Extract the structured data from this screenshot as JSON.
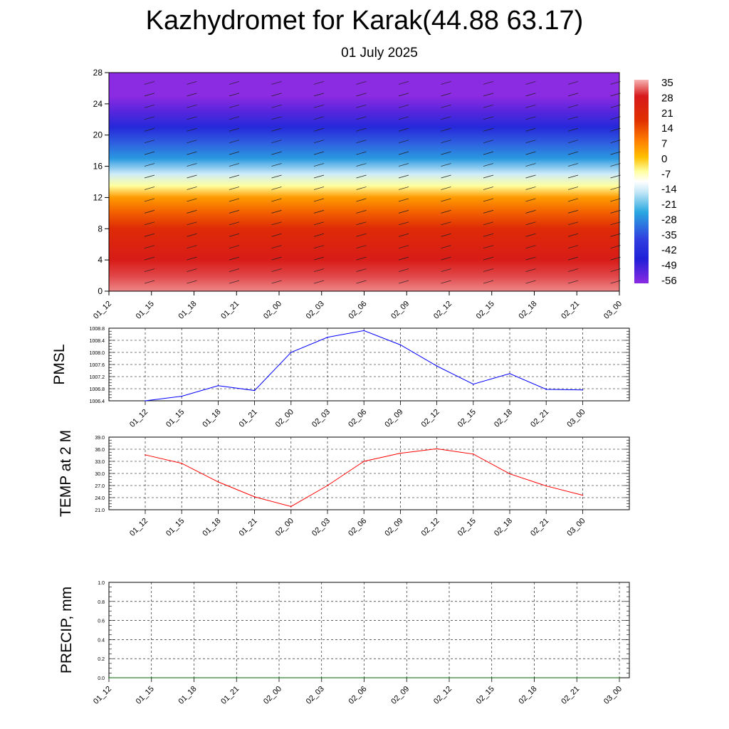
{
  "title": "Kazhydromet for Karak(44.88 63.17)",
  "subtitle": "01 July 2025",
  "chart_data": [
    {
      "type": "heatmap",
      "x_ticks": [
        "01_12",
        "01_15",
        "01_18",
        "01_21",
        "02_00",
        "02_03",
        "02_06",
        "02_09",
        "02_12",
        "02_15",
        "02_18",
        "02_21",
        "03_00"
      ],
      "y_ticks": [
        "0",
        "4",
        "8",
        "12",
        "16",
        "20",
        "24",
        "28"
      ],
      "ylim": [
        0,
        28
      ],
      "colorbar_labels": [
        "35",
        "28",
        "21",
        "14",
        "7",
        "0",
        "-7",
        "-14",
        "-21",
        "-28",
        "-35",
        "-42",
        "-49",
        "-56"
      ],
      "profile_levels": [
        0,
        2,
        4,
        6,
        8,
        10,
        12,
        13.5,
        15,
        17,
        19,
        21,
        23,
        25,
        28
      ],
      "profile_values": [
        33,
        30,
        26,
        22,
        17,
        10,
        4,
        -7,
        -20,
        -30,
        -38,
        -52,
        -60,
        -64,
        -64
      ],
      "colors": {
        "warm": "#d7191c",
        "neutral": "#ffffcc",
        "cold": "#2c7bb6",
        "coldest": "#8b2be2"
      }
    },
    {
      "type": "line",
      "ylabel": "PMSL",
      "ylim": [
        1006.4,
        1008.8
      ],
      "y_ticks": [
        "1006.4",
        "1006.8",
        "1007.2",
        "1007.6",
        "1008.0",
        "1008.4",
        "1008.8"
      ],
      "categories": [
        "01_12",
        "01_15",
        "01_18",
        "01_21",
        "02_00",
        "02_03",
        "02_06",
        "02_09",
        "02_12",
        "02_15",
        "02_18",
        "02_21",
        "03_00"
      ],
      "values": [
        1006.4,
        1006.55,
        1006.9,
        1006.74,
        1008.0,
        1008.5,
        1008.72,
        1008.25,
        1007.55,
        1006.95,
        1007.3,
        1006.78,
        1006.76
      ],
      "color": "#0000ff"
    },
    {
      "type": "line",
      "ylabel": "TEMP at 2 M",
      "ylim": [
        21.0,
        39.0
      ],
      "y_ticks": [
        "21.0",
        "24.0",
        "27.0",
        "30.0",
        "33.0",
        "36.0",
        "39.0"
      ],
      "categories": [
        "01_12",
        "01_15",
        "01_18",
        "01_21",
        "02_00",
        "02_03",
        "02_06",
        "02_09",
        "02_12",
        "02_15",
        "02_18",
        "02_21",
        "03_00"
      ],
      "values": [
        34.6,
        32.5,
        27.9,
        24.2,
        21.8,
        27.0,
        33.0,
        35.0,
        36.1,
        34.8,
        29.9,
        26.9,
        24.6
      ],
      "color": "#ff0000"
    },
    {
      "type": "line",
      "ylabel": "PRECIP, mm",
      "ylim": [
        0.0,
        1.0
      ],
      "y_ticks": [
        "0.0",
        "0.2",
        "0.4",
        "0.6",
        "0.8",
        "1.0"
      ],
      "categories": [
        "01_12",
        "01_15",
        "01_18",
        "01_21",
        "02_00",
        "02_03",
        "02_06",
        "02_09",
        "02_12",
        "02_15",
        "02_18",
        "02_21",
        "03_00"
      ],
      "values": [
        0,
        0,
        0,
        0,
        0,
        0,
        0,
        0,
        0,
        0,
        0,
        0,
        0
      ],
      "color": "#006400"
    }
  ]
}
